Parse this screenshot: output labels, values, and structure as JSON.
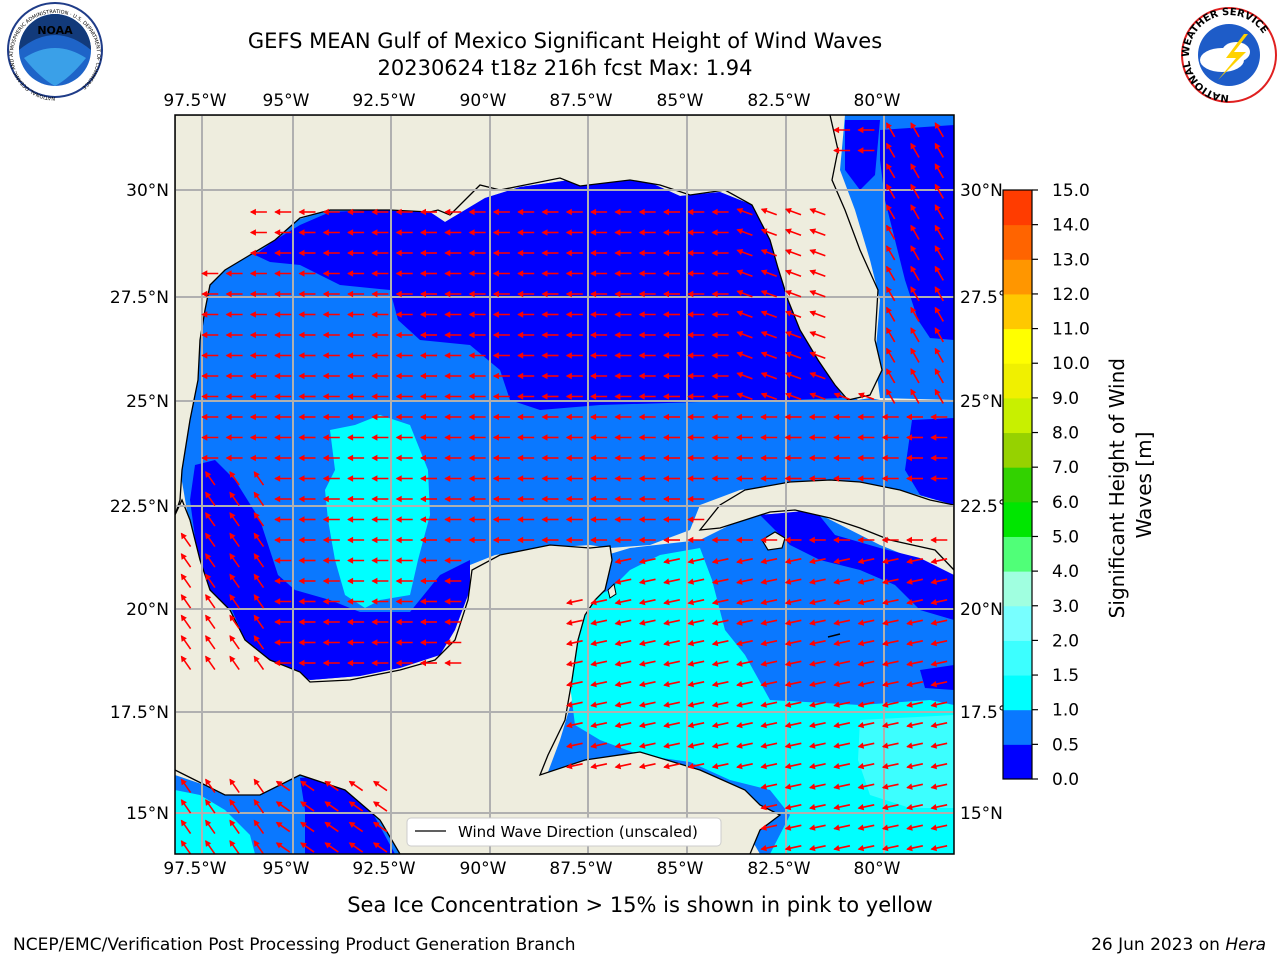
{
  "header": {
    "title_line1": "GEFS MEAN Gulf of Mexico Significant Height of Wind Waves",
    "title_line2": "20230624 t18z 216h fcst   Max: 1.94"
  },
  "logos": {
    "left": "NOAA",
    "left_ring": "NATIONAL OCEANIC AND ATMOSPHERIC ADMINISTRATION · U.S. DEPARTMENT OF COMMERCE",
    "right_ring": "NATIONAL WEATHER SERVICE"
  },
  "axes": {
    "lon_labels": [
      "97.5°W",
      "95°W",
      "92.5°W",
      "90°W",
      "87.5°W",
      "85°W",
      "82.5°W",
      "80°W"
    ],
    "lat_labels": [
      "30°N",
      "27.5°N",
      "25°N",
      "22.5°N",
      "20°N",
      "17.5°N",
      "15°N"
    ]
  },
  "legend": {
    "label": "Wind Wave Direction (unscaled)"
  },
  "colorbar": {
    "label": "Significant Height of Wind Waves [m]",
    "ticks": [
      "0.0",
      "0.5",
      "1.0",
      "1.5",
      "2.0",
      "3.0",
      "4.0",
      "5.0",
      "6.0",
      "7.0",
      "8.0",
      "9.0",
      "10.0",
      "11.0",
      "12.0",
      "13.0",
      "14.0",
      "15.0"
    ],
    "colors": [
      "#0000ff",
      "#0a78ff",
      "#00ffff",
      "#3cffff",
      "#78ffff",
      "#a0ffe0",
      "#50ff78",
      "#00e600",
      "#32d200",
      "#96d200",
      "#c8f000",
      "#f0f000",
      "#ffff00",
      "#ffc800",
      "#ff9600",
      "#ff6400",
      "#ff3c00",
      "#ff0000"
    ]
  },
  "footer": {
    "caption": "Sea Ice Concentration > 15% is shown in pink to yellow",
    "credit": "NCEP/EMC/Verification Post Processing Product Generation Branch",
    "date": "26 Jun 2023 on ",
    "host": "Hera"
  },
  "colors": {
    "land": "#eeedde",
    "arrow": "#ff0000",
    "grid": "#b0b0b0",
    "band_0": "#0000ff",
    "band_0_5": "#0a78ff",
    "band_1": "#00ffff",
    "band_1_5": "#3cffff"
  }
}
